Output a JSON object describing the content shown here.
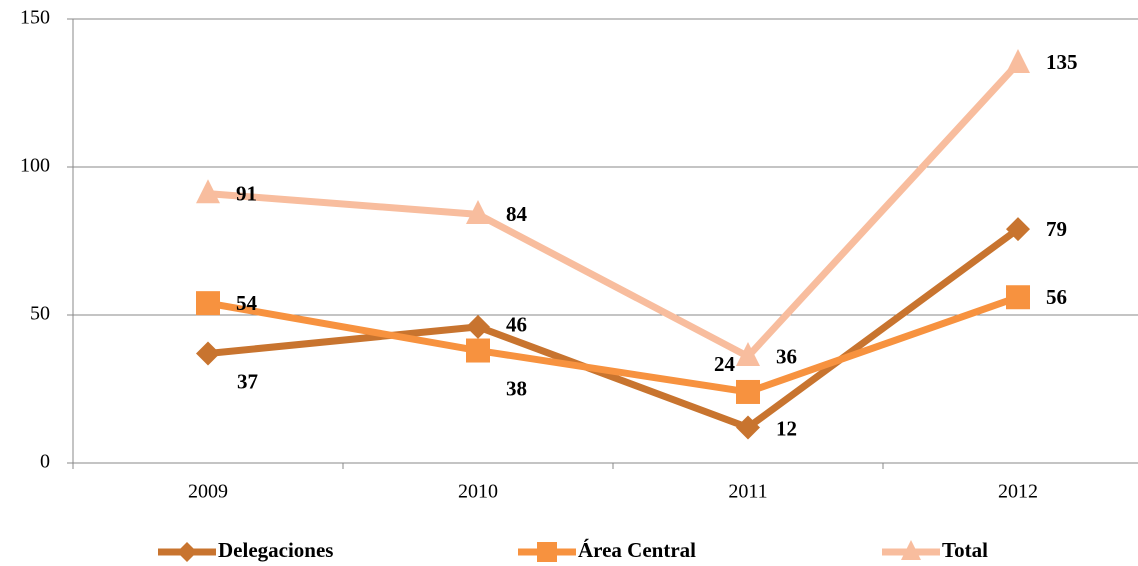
{
  "chart_data": {
    "type": "line",
    "categories": [
      "2009",
      "2010",
      "2011",
      "2012"
    ],
    "series": [
      {
        "name": "Delegaciones",
        "color": "#c8742f",
        "marker": "diamond",
        "values": [
          37,
          46,
          12,
          79
        ]
      },
      {
        "name": "Área Central",
        "color": "#f7923f",
        "marker": "square",
        "values": [
          54,
          38,
          24,
          56
        ]
      },
      {
        "name": "Total",
        "color": "#f8bd9e",
        "marker": "triangle",
        "values": [
          91,
          84,
          36,
          135
        ]
      }
    ],
    "ylim": [
      0,
      150
    ],
    "yticks": [
      0,
      50,
      100,
      150
    ],
    "grid": true,
    "legend": "bottom"
  }
}
